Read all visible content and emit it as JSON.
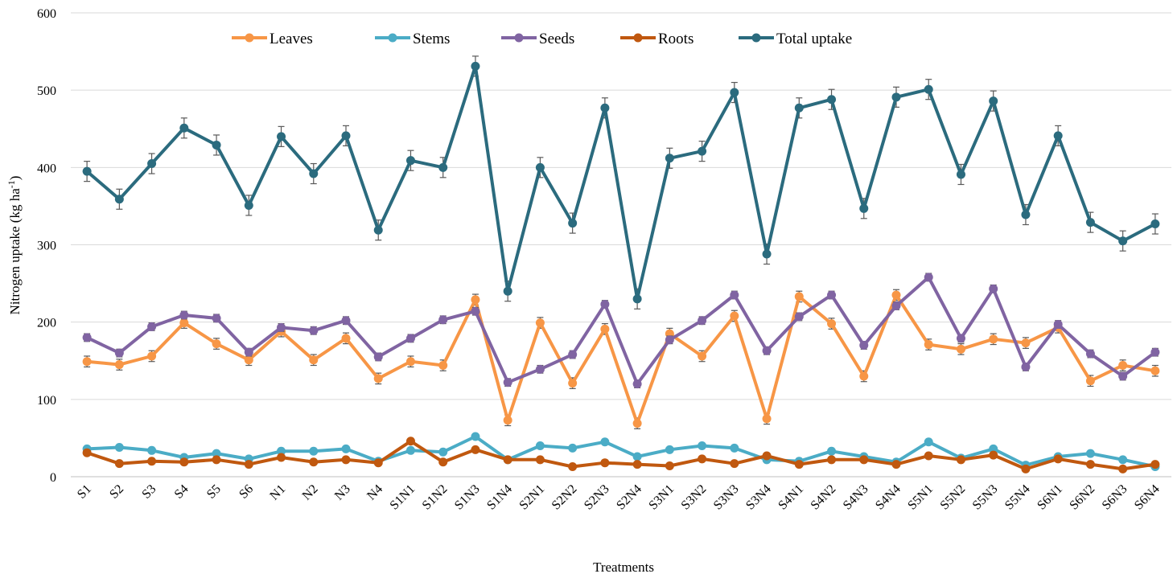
{
  "chart_data": {
    "type": "line",
    "xlabel": "Treatments",
    "ylabel": "Nitrogen uptake (kg ha",
    "ylabel_sup": "-1",
    "ylabel_close": ")",
    "ylim": [
      0,
      600
    ],
    "yticks": [
      0,
      100,
      200,
      300,
      400,
      500,
      600
    ],
    "grid": "horizontal",
    "legend_position": "top",
    "error_bars": true,
    "categories": [
      "S1",
      "S2",
      "S3",
      "S4",
      "S5",
      "S6",
      "N1",
      "N2",
      "N3",
      "N4",
      "S1N1",
      "S1N2",
      "S1N3",
      "S1N4",
      "S2N1",
      "S2N2",
      "S2N3",
      "S2N4",
      "S3N1",
      "S3N2",
      "S3N3",
      "S3N4",
      "S4N1",
      "S4N2",
      "S4N3",
      "S4N4",
      "S5N1",
      "S5N2",
      "S5N3",
      "S5N4",
      "S6N1",
      "S6N2",
      "S6N3",
      "S6N4"
    ],
    "series": [
      {
        "name": "Leaves",
        "color": "#f79646",
        "error": 7,
        "values": [
          149,
          145,
          156,
          199,
          172,
          151,
          188,
          151,
          179,
          127,
          149,
          144,
          229,
          73,
          199,
          121,
          191,
          69,
          185,
          156,
          208,
          75,
          233,
          198,
          130,
          235,
          171,
          165,
          178,
          173,
          193,
          124,
          144,
          137
        ]
      },
      {
        "name": "Stems",
        "color": "#4bacc6",
        "error": 2,
        "values": [
          36,
          38,
          34,
          25,
          30,
          23,
          33,
          33,
          36,
          20,
          34,
          32,
          52,
          22,
          40,
          37,
          45,
          26,
          35,
          40,
          37,
          22,
          20,
          33,
          26,
          19,
          45,
          24,
          36,
          15,
          26,
          30,
          22,
          13
        ]
      },
      {
        "name": "Seeds",
        "color": "#8064a2",
        "error": 5,
        "values": [
          180,
          160,
          194,
          209,
          205,
          161,
          193,
          189,
          202,
          155,
          179,
          203,
          214,
          122,
          139,
          158,
          223,
          120,
          177,
          202,
          235,
          163,
          207,
          235,
          170,
          221,
          258,
          179,
          243,
          142,
          197,
          159,
          130,
          161
        ]
      },
      {
        "name": "Roots",
        "color": "#c0580f",
        "error": 1,
        "values": [
          31,
          17,
          20,
          19,
          22,
          16,
          25,
          19,
          22,
          18,
          46,
          19,
          35,
          22,
          22,
          13,
          18,
          16,
          14,
          23,
          17,
          27,
          16,
          22,
          22,
          16,
          27,
          22,
          28,
          10,
          23,
          16,
          10,
          16
        ]
      },
      {
        "name": "Total uptake",
        "color": "#2b6b7e",
        "error": 13,
        "values": [
          395,
          359,
          405,
          451,
          429,
          351,
          440,
          392,
          441,
          319,
          409,
          400,
          531,
          240,
          400,
          328,
          477,
          230,
          412,
          421,
          497,
          288,
          477,
          488,
          347,
          491,
          501,
          391,
          486,
          339,
          441,
          329,
          305,
          327
        ]
      }
    ]
  }
}
